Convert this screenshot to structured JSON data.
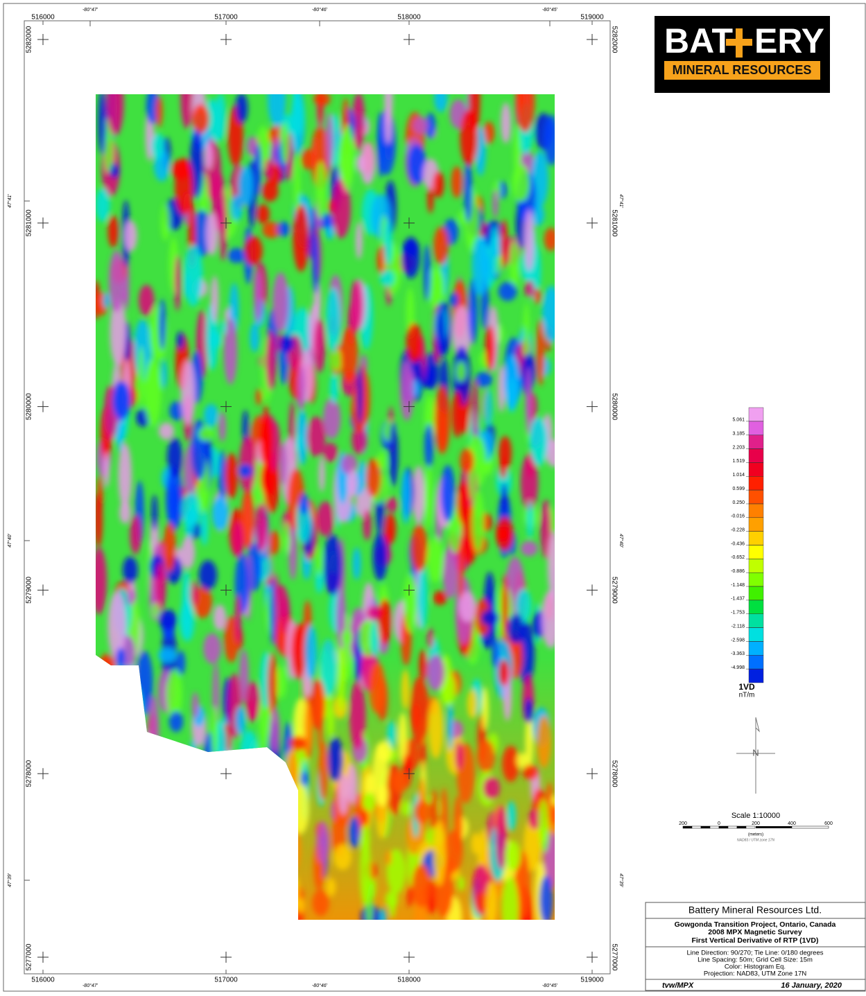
{
  "map": {
    "easting_labels": [
      "516000",
      "517000",
      "518000",
      "519000"
    ],
    "northing_labels": [
      "5282000",
      "5281000",
      "5280000",
      "5279000",
      "5278000",
      "5277000"
    ],
    "longitude_labels": [
      "-80°47'",
      "-80°46'",
      "-80°45'"
    ],
    "latitude_labels": [
      "47°41'",
      "47°40'",
      "47°39'"
    ]
  },
  "logo": {
    "left": "BAT",
    "right": "ERY",
    "tagline": "MINERAL RESOURCES"
  },
  "legend": {
    "values": [
      "5.061",
      "3.185",
      "2.203",
      "1.519",
      "1.014",
      "0.599",
      "0.250",
      "-0.016",
      "-0.228",
      "-0.436",
      "-0.652",
      "-0.886",
      "-1.148",
      "-1.437",
      "-1.753",
      "-2.118",
      "-2.598",
      "-3.363",
      "-4.998"
    ],
    "title": "1VD",
    "unit": "nT/m"
  },
  "north_arrow": {
    "label": "N"
  },
  "scale_bar": {
    "title": "Scale 1:10000",
    "ticks": [
      "200",
      "0",
      "200",
      "400",
      "600"
    ],
    "unit": "(meters)",
    "datum": "NAD83 / UTM zone 17N"
  },
  "title_block": {
    "company": "Battery Mineral Resources Ltd.",
    "title_lines": [
      "Gowgonda Transition Project, Ontario, Canada",
      "2008 MPX Magnetic Survey",
      "First Vertical Derivative of RTP (1VD)"
    ],
    "info_lines": [
      "Line Direction: 90/270; Tie Line: 0/180 degrees",
      "Line Spacing: 50m; Grid Cell Size: 15m",
      "Color: Histogram Eq.",
      "Projection: NAD83, UTM Zone 17N"
    ],
    "author": "tvw/MPX",
    "date": "16 January, 2020"
  }
}
